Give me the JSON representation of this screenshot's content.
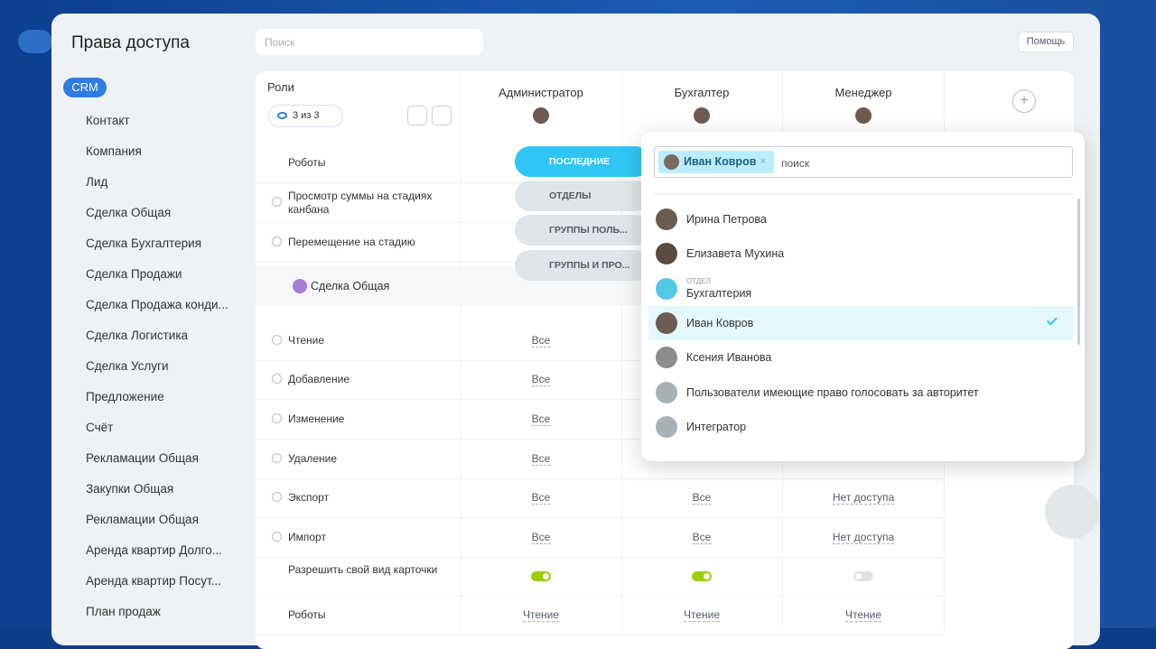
{
  "header": {
    "title": "Права доступа",
    "search_placeholder": "Поиск",
    "help": "Помощь"
  },
  "sidebar": {
    "active": "CRM",
    "items": [
      "Контакт",
      "Компания",
      "Лид",
      "Сделка Общая",
      "Сделка Бухгалтерия",
      "Сделка Продажи",
      "Сделка Продажа конди...",
      "Сделка Логистика",
      "Сделка Услуги",
      "Предложение",
      "Счёт",
      "Рекламации Общая",
      "Закупки Общая",
      "Рекламации Общая",
      "Аренда квартир Долго...",
      "Аренда квартир Посут...",
      "План продаж"
    ]
  },
  "table": {
    "roles_label": "Роли",
    "roles_counter": "3 из 3",
    "columns": [
      "Администратор",
      "Бухгалтер",
      "Менеджер"
    ],
    "rows_top": [
      {
        "label": "Роботы"
      },
      {
        "label": "Просмотр суммы на стадиях канбана"
      },
      {
        "label": "Перемещение на стадию"
      }
    ],
    "section": "Сделка Общая",
    "rows": [
      {
        "label": "Чтение",
        "values": [
          "Все"
        ]
      },
      {
        "label": "Добавление",
        "values": [
          "Все"
        ]
      },
      {
        "label": "Изменение",
        "values": [
          "Все"
        ]
      },
      {
        "label": "Удаление",
        "values": [
          "Все"
        ]
      },
      {
        "label": "Экспорт",
        "values": [
          "Все",
          "Все",
          "Нет доступа"
        ]
      },
      {
        "label": "Импорт",
        "values": [
          "Все",
          "Все",
          "Нет доступа"
        ]
      },
      {
        "label": "Разрешить свой вид карточки",
        "toggles": [
          true,
          true,
          false
        ]
      },
      {
        "label": "Роботы",
        "values": [
          "Чтение",
          "Чтение",
          "Чтение"
        ]
      }
    ]
  },
  "popup": {
    "tabs": [
      "ПОСЛЕДНИЕ",
      "ОТДЕЛЫ",
      "ГРУППЫ ПОЛЬ...",
      "ГРУППЫ И ПРО..."
    ],
    "tag": "Иван Ковров",
    "input_placeholder": "поиск",
    "items": [
      {
        "name": "Ирина Петрова"
      },
      {
        "name": "Елизавета Мухина"
      },
      {
        "kind": "ОТДЕЛ",
        "name": "Бухгалтерия"
      },
      {
        "name": "Иван Ковров"
      },
      {
        "name": "Ксения Иванова"
      },
      {
        "name": "Пользователи имеющие право голосовать за авторитет"
      },
      {
        "name": "Интегратор"
      }
    ]
  }
}
